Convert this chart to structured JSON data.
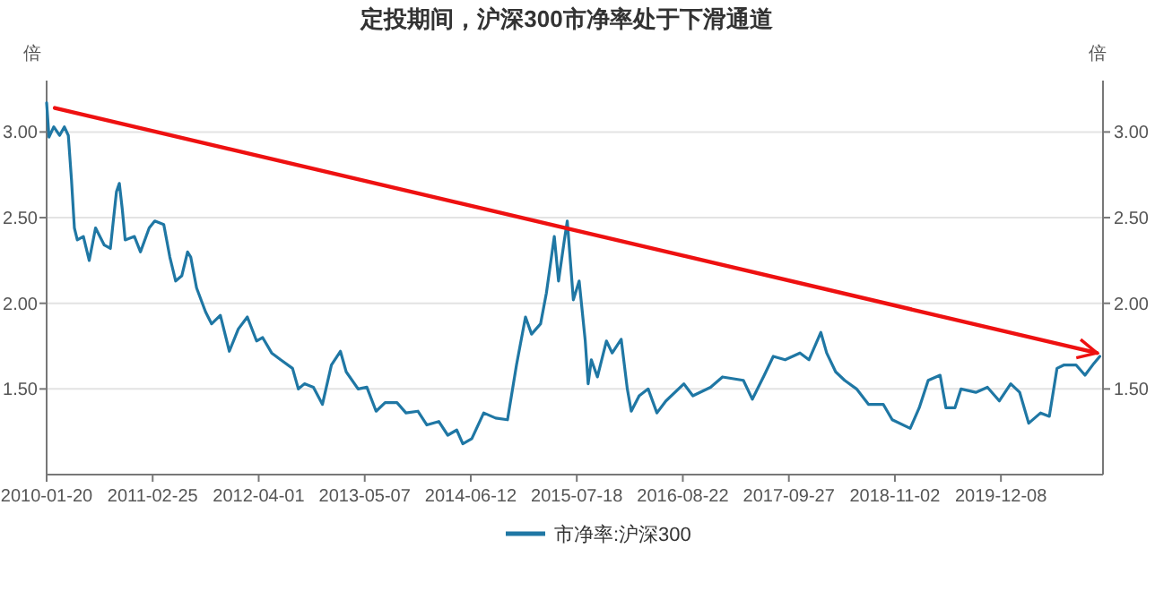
{
  "chart_data": {
    "type": "line",
    "title": "定投期间，沪深300市净率处于下滑通道",
    "ylabel": "倍",
    "y2label": "倍",
    "xlim": [
      "2010-01-20",
      "2020-12-28"
    ],
    "xticks": [
      "2010-01-20",
      "2011-02-25",
      "2012-04-01",
      "2013-05-07",
      "2014-06-12",
      "2015-07-18",
      "2016-08-22",
      "2017-09-27",
      "2018-11-02",
      "2019-12-08"
    ],
    "ylim": [
      1,
      3.3
    ],
    "yticks": [
      {
        "value": 1.5,
        "label": "1.50"
      },
      {
        "value": 2,
        "label": "2.00"
      },
      {
        "value": 2.5,
        "label": "2.50"
      },
      {
        "value": 3,
        "label": "3.00"
      }
    ],
    "y2lim": [
      1,
      3.3
    ],
    "y2ticks": [
      {
        "value": 1.5,
        "label": "1.50"
      },
      {
        "value": 2,
        "label": "2.00"
      },
      {
        "value": 2.5,
        "label": "2.50"
      },
      {
        "value": 3,
        "label": "3.00"
      }
    ],
    "grid": "y",
    "legend": "bottom",
    "marker": "none",
    "line_style": "solid",
    "series": [
      {
        "name": "市净率:沪深300",
        "color": "#1f77a4",
        "x": [
          "2010-01-20",
          "2010-01-29",
          "2010-02-16",
          "2010-03-10",
          "2010-03-28",
          "2010-04-12",
          "2010-04-24",
          "2010-05-05",
          "2010-05-16",
          "2010-06-08",
          "2010-06-30",
          "2010-07-24",
          "2010-08-26",
          "2010-09-18",
          "2010-10-11",
          "2010-10-22",
          "2010-11-02",
          "2010-11-13",
          "2010-12-18",
          "2011-01-10",
          "2011-02-12",
          "2011-03-05",
          "2011-04-08",
          "2011-05-01",
          "2011-05-23",
          "2011-06-15",
          "2011-07-07",
          "2011-07-19",
          "2011-08-10",
          "2011-09-13",
          "2011-10-06",
          "2011-11-08",
          "2011-12-12",
          "2012-01-15",
          "2012-02-18",
          "2012-03-24",
          "2012-04-16",
          "2012-05-20",
          "2012-06-23",
          "2012-08-07",
          "2012-08-29",
          "2012-09-21",
          "2012-10-25",
          "2012-11-28",
          "2013-01-01",
          "2013-02-04",
          "2013-02-26",
          "2013-04-12",
          "2013-05-15",
          "2013-06-19",
          "2013-07-23",
          "2013-09-06",
          "2013-10-10",
          "2013-11-24",
          "2013-12-28",
          "2014-02-11",
          "2014-03-17",
          "2014-04-20",
          "2014-05-13",
          "2014-06-16",
          "2014-07-31",
          "2014-09-14",
          "2014-10-29",
          "2014-12-02",
          "2015-01-05",
          "2015-01-28",
          "2015-03-03",
          "2015-03-25",
          "2015-04-24",
          "2015-05-10",
          "2015-06-01",
          "2015-06-12",
          "2015-07-05",
          "2015-07-27",
          "2015-08-19",
          "2015-08-30",
          "2015-09-11",
          "2015-10-04",
          "2015-11-07",
          "2015-11-29",
          "2016-01-02",
          "2016-01-25",
          "2016-02-09",
          "2016-03-10",
          "2016-04-13",
          "2016-05-16",
          "2016-06-19",
          "2016-08-26",
          "2016-09-29",
          "2016-12-05",
          "2017-01-19",
          "2017-04-08",
          "2017-05-12",
          "2017-06-26",
          "2017-07-30",
          "2017-09-13",
          "2017-11-08",
          "2017-12-12",
          "2018-01-26",
          "2018-02-17",
          "2018-03-23",
          "2018-04-26",
          "2018-06-10",
          "2018-07-25",
          "2018-09-19",
          "2018-10-23",
          "2018-12-30",
          "2019-02-02",
          "2019-03-08",
          "2019-04-22",
          "2019-05-14",
          "2019-06-17",
          "2019-07-10",
          "2019-09-04",
          "2019-10-18",
          "2019-12-02",
          "2020-01-14",
          "2020-02-17",
          "2020-03-22",
          "2020-05-06",
          "2020-06-08",
          "2020-07-07",
          "2020-08-03",
          "2020-09-17",
          "2020-10-21",
          "2020-11-24",
          "2020-12-16"
        ],
        "values": [
          3.17,
          2.97,
          3.03,
          2.98,
          3.03,
          2.98,
          2.72,
          2.44,
          2.37,
          2.39,
          2.25,
          2.44,
          2.34,
          2.32,
          2.65,
          2.7,
          2.55,
          2.37,
          2.39,
          2.3,
          2.44,
          2.48,
          2.46,
          2.27,
          2.13,
          2.16,
          2.3,
          2.27,
          2.09,
          1.95,
          1.88,
          1.93,
          1.72,
          1.85,
          1.92,
          1.78,
          1.8,
          1.71,
          1.67,
          1.62,
          1.5,
          1.53,
          1.51,
          1.41,
          1.64,
          1.72,
          1.6,
          1.5,
          1.51,
          1.37,
          1.42,
          1.42,
          1.36,
          1.37,
          1.29,
          1.31,
          1.23,
          1.26,
          1.18,
          1.21,
          1.36,
          1.33,
          1.32,
          1.64,
          1.92,
          1.82,
          1.88,
          2.06,
          2.39,
          2.13,
          2.37,
          2.48,
          2.02,
          2.13,
          1.78,
          1.53,
          1.67,
          1.57,
          1.78,
          1.71,
          1.79,
          1.5,
          1.37,
          1.46,
          1.5,
          1.36,
          1.43,
          1.53,
          1.46,
          1.51,
          1.57,
          1.55,
          1.44,
          1.58,
          1.69,
          1.67,
          1.71,
          1.67,
          1.83,
          1.71,
          1.6,
          1.55,
          1.5,
          1.41,
          1.41,
          1.32,
          1.27,
          1.39,
          1.55,
          1.58,
          1.39,
          1.39,
          1.5,
          1.48,
          1.51,
          1.43,
          1.53,
          1.48,
          1.3,
          1.36,
          1.34,
          1.62,
          1.64,
          1.64,
          1.58,
          1.65,
          1.69
        ]
      },
      {
        "color": "#ee1111",
        "x": [
          "2010-02-20",
          "2020-12-05"
        ],
        "values": [
          3.14,
          1.71
        ]
      }
    ]
  }
}
